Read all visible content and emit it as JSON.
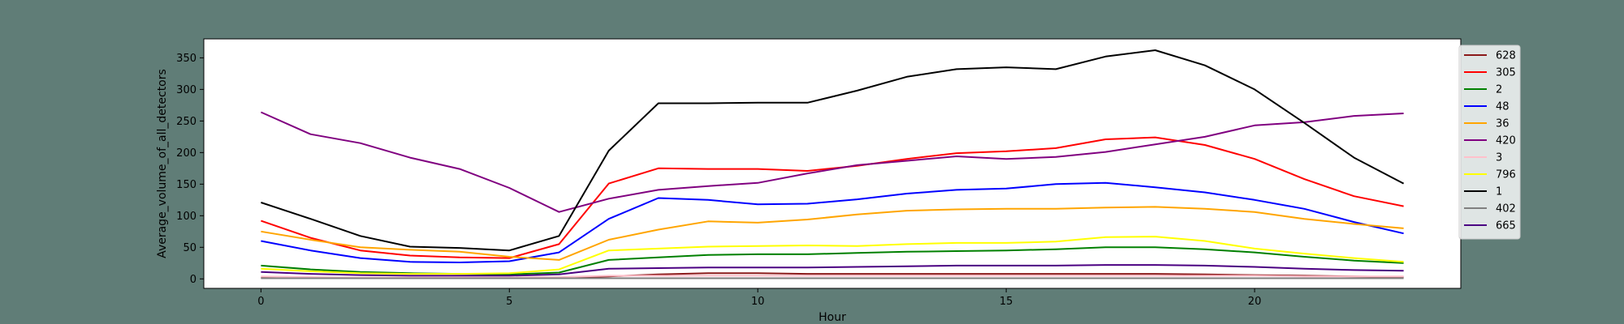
{
  "chart_data": {
    "type": "line",
    "title": "",
    "xlabel": "Hour",
    "ylabel": "Average_volume_of_all_detectors",
    "xlim": [
      -1.15,
      24.15
    ],
    "ylim": [
      -15,
      380
    ],
    "xticks": [
      0,
      5,
      10,
      15,
      20
    ],
    "yticks": [
      0,
      50,
      100,
      150,
      200,
      250,
      300,
      350
    ],
    "grid": false,
    "legend_position": "upper-right-outside",
    "x": [
      0,
      1,
      2,
      3,
      4,
      5,
      6,
      7,
      8,
      9,
      10,
      11,
      12,
      13,
      14,
      15,
      16,
      17,
      18,
      19,
      20,
      21,
      22,
      23
    ],
    "series": [
      {
        "name": "628",
        "color": "#8b1a1a",
        "values": [
          2,
          2,
          1,
          1,
          1,
          1,
          2,
          4,
          7,
          9,
          9,
          8,
          8,
          8,
          8,
          8,
          8,
          8,
          8,
          7,
          6,
          5,
          4,
          3
        ]
      },
      {
        "name": "305",
        "color": "#ff0000",
        "values": [
          92,
          65,
          45,
          37,
          34,
          33,
          55,
          151,
          175,
          174,
          174,
          171,
          179,
          190,
          199,
          202,
          207,
          221,
          224,
          212,
          190,
          158,
          131,
          115
        ]
      },
      {
        "name": "2",
        "color": "#008000",
        "values": [
          21,
          15,
          11,
          9,
          8,
          7,
          10,
          30,
          34,
          38,
          39,
          39,
          41,
          43,
          44,
          45,
          47,
          50,
          50,
          47,
          42,
          35,
          29,
          25
        ]
      },
      {
        "name": "48",
        "color": "#0000ff",
        "values": [
          60,
          45,
          33,
          27,
          26,
          28,
          42,
          95,
          128,
          125,
          118,
          119,
          126,
          135,
          141,
          143,
          150,
          152,
          145,
          137,
          125,
          111,
          90,
          72
        ]
      },
      {
        "name": "36",
        "color": "#ffa500",
        "values": [
          75,
          62,
          50,
          46,
          43,
          35,
          30,
          62,
          78,
          91,
          89,
          94,
          102,
          108,
          110,
          111,
          111,
          113,
          114,
          111,
          106,
          95,
          87,
          80
        ]
      },
      {
        "name": "420",
        "color": "#800080",
        "values": [
          264,
          229,
          215,
          192,
          174,
          144,
          106,
          127,
          141,
          147,
          152,
          167,
          180,
          187,
          194,
          190,
          193,
          201,
          213,
          225,
          243,
          248,
          258,
          262
        ]
      },
      {
        "name": "3",
        "color": "#ffc0cb",
        "values": [
          4,
          3,
          2,
          2,
          2,
          2,
          3,
          5,
          5,
          5,
          5,
          5,
          5,
          5,
          5,
          5,
          5,
          5,
          5,
          5,
          5,
          4,
          4,
          4
        ]
      },
      {
        "name": "796",
        "color": "#ffff00",
        "values": [
          16,
          12,
          9,
          8,
          8,
          9,
          15,
          45,
          48,
          51,
          52,
          53,
          52,
          55,
          57,
          57,
          59,
          66,
          67,
          60,
          48,
          40,
          33,
          27
        ]
      },
      {
        "name": "1",
        "color": "#000000",
        "values": [
          121,
          95,
          68,
          51,
          49,
          45,
          68,
          203,
          278,
          278,
          279,
          279,
          298,
          320,
          332,
          335,
          332,
          352,
          362,
          338,
          300,
          247,
          192,
          151
        ]
      },
      {
        "name": "402",
        "color": "#808080",
        "values": [
          1,
          1,
          1,
          1,
          1,
          1,
          1,
          1,
          1,
          1,
          1,
          1,
          1,
          1,
          1,
          1,
          1,
          1,
          1,
          1,
          1,
          1,
          1,
          1
        ]
      },
      {
        "name": "665",
        "color": "#4b0082",
        "values": [
          11,
          8,
          6,
          5,
          5,
          5,
          7,
          16,
          17,
          18,
          18,
          18,
          19,
          20,
          21,
          21,
          21,
          22,
          22,
          21,
          19,
          16,
          14,
          13
        ]
      }
    ]
  }
}
